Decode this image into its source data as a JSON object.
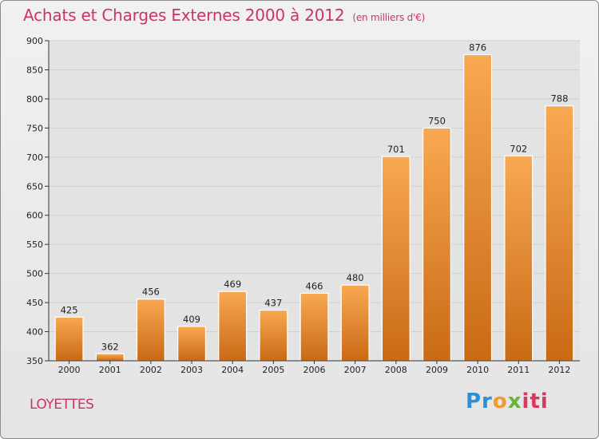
{
  "header": {
    "title": "Achats et Charges Externes 2000 à 2012",
    "subtitle": "(en milliers d'€)"
  },
  "location": "LOYETTES",
  "logo": {
    "p1": "Pr",
    "p2": "o",
    "p3": "x",
    "p4": "iti"
  },
  "colors": {
    "bar_top": "#f9a852",
    "bar_bottom": "#c96a15",
    "title": "#cc3366",
    "grid": "#cfcfcf"
  },
  "chart_data": {
    "type": "bar",
    "title": "Achats et Charges Externes 2000 à 2012",
    "subtitle": "(en milliers d'€)",
    "categories": [
      "2000",
      "2001",
      "2002",
      "2003",
      "2004",
      "2005",
      "2006",
      "2007",
      "2008",
      "2009",
      "2010",
      "2011",
      "2012"
    ],
    "values": [
      425,
      362,
      456,
      409,
      469,
      437,
      466,
      480,
      701,
      750,
      876,
      702,
      788
    ],
    "ylim": [
      350,
      900
    ],
    "yticks": [
      350,
      400,
      450,
      500,
      550,
      600,
      650,
      700,
      750,
      800,
      850,
      900
    ],
    "grid": true,
    "xlabel": "",
    "ylabel": ""
  }
}
